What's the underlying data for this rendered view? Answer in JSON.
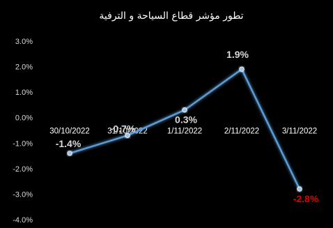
{
  "chart_data": {
    "type": "line",
    "title": "تطور مؤشر قطاع السياحة و الترفية",
    "xlabel": "",
    "ylabel": "",
    "categories": [
      "30/10/2022",
      "31/10/2022",
      "1/11/2022",
      "2/11/2022",
      "3/11/2022"
    ],
    "series": [
      {
        "values": [
          -1.4,
          -0.7,
          0.3,
          1.9,
          -2.8
        ]
      }
    ],
    "data_labels": [
      "-1.4%",
      "-0.7%",
      "0.3%",
      "1.9%",
      "-2.8%"
    ],
    "y_ticks": [
      "3.0%",
      "2.0%",
      "1.0%",
      "0.0%",
      "-1.0%",
      "-2.0%",
      "-3.0%",
      "-4.0%"
    ],
    "ylim": [
      -4.0,
      3.0
    ],
    "grid": false,
    "legend": "none",
    "colors": {
      "background": "#000000",
      "line": "#5b9bd5",
      "marker": "#9cc3ea",
      "label": "#d9d9d9",
      "negative_highlight": "#e00000"
    }
  }
}
